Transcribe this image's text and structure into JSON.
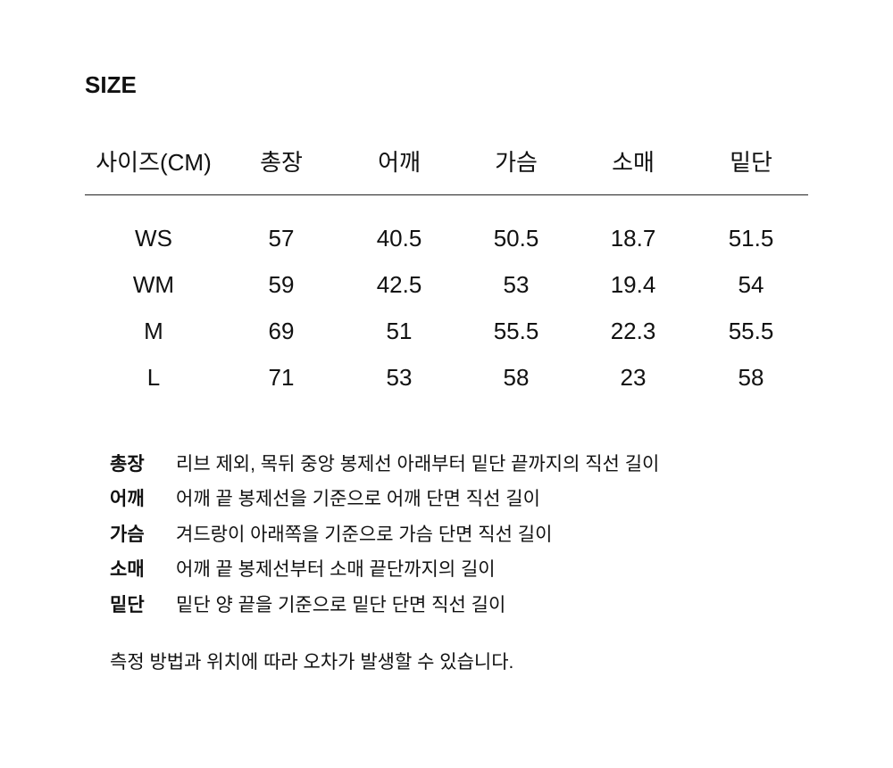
{
  "title": "SIZE",
  "table": {
    "headers": [
      "사이즈(CM)",
      "총장",
      "어깨",
      "가슴",
      "소매",
      "밑단"
    ],
    "rows": [
      [
        "WS",
        "57",
        "40.5",
        "50.5",
        "18.7",
        "51.5"
      ],
      [
        "WM",
        "59",
        "42.5",
        "53",
        "19.4",
        "54"
      ],
      [
        "M",
        "69",
        "51",
        "55.5",
        "22.3",
        "55.5"
      ],
      [
        "L",
        "71",
        "53",
        "58",
        "23",
        "58"
      ]
    ]
  },
  "notes": [
    {
      "label": "총장",
      "text": "리브 제외, 목뒤 중앙 봉제선 아래부터 밑단 끝까지의 직선 길이"
    },
    {
      "label": "어깨",
      "text": "어깨 끝 봉제선을 기준으로 어깨 단면 직선 길이"
    },
    {
      "label": "가슴",
      "text": "겨드랑이 아래쪽을 기준으로 가슴 단면 직선 길이"
    },
    {
      "label": "소매",
      "text": "어깨 끝 봉제선부터 소매 끝단까지의 길이"
    },
    {
      "label": "밑단",
      "text": "밑단 양 끝을 기준으로 밑단 단면 직선 길이"
    }
  ],
  "footer": "측정 방법과 위치에 따라 오차가 발생할 수 있습니다."
}
